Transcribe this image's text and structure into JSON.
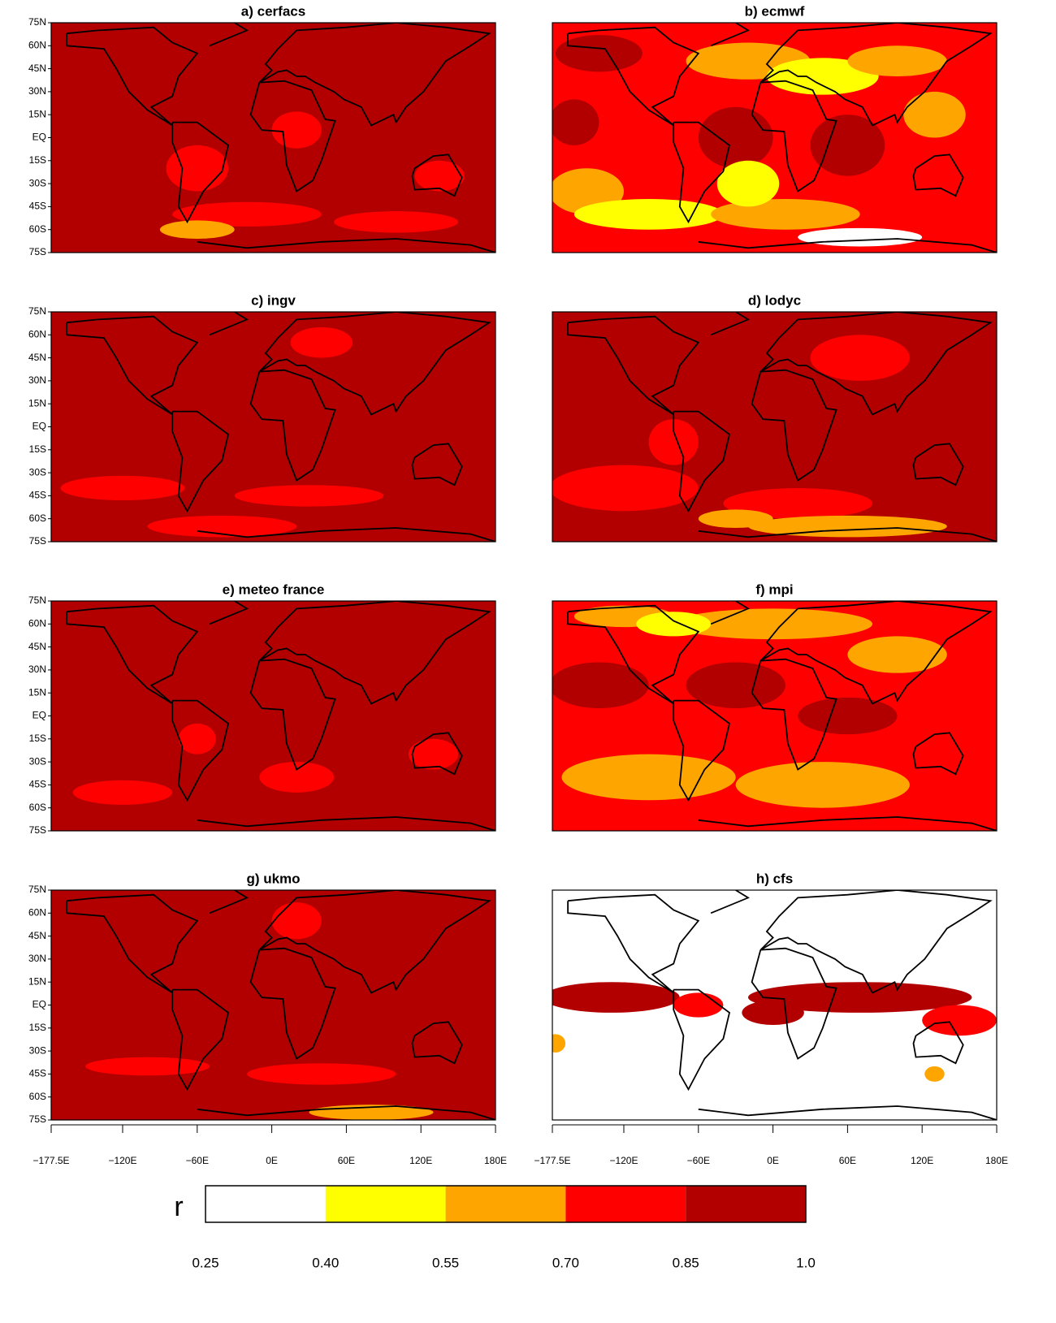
{
  "chart_data": {
    "type": "map-grid",
    "panels": [
      {
        "title": "a) cerfacs"
      },
      {
        "title": "b) ecmwf"
      },
      {
        "title": "c) ingv"
      },
      {
        "title": "d) lodyc"
      },
      {
        "title": "e) meteo france"
      },
      {
        "title": "f) mpi"
      },
      {
        "title": "g) ukmo"
      },
      {
        "title": "h) cfs"
      }
    ],
    "xlim": [
      -177.5,
      180
    ],
    "ylim": [
      -75,
      75
    ],
    "xticks": [
      {
        "value": -177.5,
        "label": "−177.5E"
      },
      {
        "value": -120,
        "label": "−120E"
      },
      {
        "value": -60,
        "label": "−60E"
      },
      {
        "value": 0,
        "label": "0E"
      },
      {
        "value": 60,
        "label": "60E"
      },
      {
        "value": 120,
        "label": "120E"
      },
      {
        "value": 180,
        "label": "180E"
      }
    ],
    "yticks": [
      {
        "value": 75,
        "label": "75N"
      },
      {
        "value": 60,
        "label": "60N"
      },
      {
        "value": 45,
        "label": "45N"
      },
      {
        "value": 30,
        "label": "30N"
      },
      {
        "value": 15,
        "label": "15N"
      },
      {
        "value": 0,
        "label": "EQ"
      },
      {
        "value": -15,
        "label": "15S"
      },
      {
        "value": -30,
        "label": "30S"
      },
      {
        "value": -45,
        "label": "45S"
      },
      {
        "value": -60,
        "label": "60S"
      },
      {
        "value": -75,
        "label": "75S"
      }
    ],
    "colorbar": {
      "title": "r",
      "levels": [
        0.25,
        {
          "value": 0.4,
          "label": "0.40"
        },
        {
          "value": 0.55,
          "label": "0.55"
        },
        {
          "value": 0.7,
          "label": "0.70"
        },
        0.85,
        {
          "value": 1,
          "label": "1.0"
        }
      ],
      "colors": [
        "#ffffff",
        "#ffff00",
        "#ffa500",
        "#ff0000",
        "#b20000"
      ]
    }
  }
}
